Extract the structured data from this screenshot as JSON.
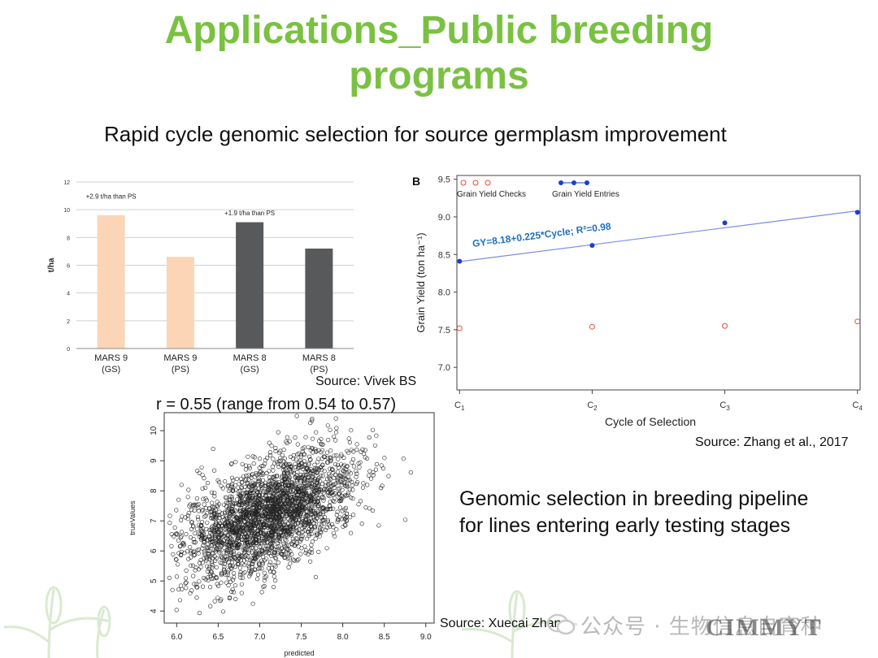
{
  "slide": {
    "title_line1": "Applications_Public breeding",
    "title_line2": "programs",
    "subtitle": "Rapid cycle genomic selection for source germplasm improvement",
    "source_vivek": "Source: Vivek BS",
    "correlation_note": "r = 0.55 (range from 0.54 to 0.57)",
    "source_zhang": "Source: Zhang et al., 2017",
    "pipeline_line1": "Genomic selection in breeding pipeline",
    "pipeline_line2": "for lines entering early testing stages",
    "source_xuecai": "Source: Xuecai Zhang",
    "watermark": "公众号 · 生物信息自育种",
    "logo_text": "CIMMYT"
  },
  "colors": {
    "title_green": "#7ac143",
    "bar_peach": "#fbd5b5",
    "bar_dark": "#58595b",
    "entries_blue": "#1a3fd6",
    "checks_red": "#e74c3c",
    "regression_blue": "#7b8ee0",
    "equation_blue": "#1f6fc0"
  },
  "chart_data": [
    {
      "type": "bar",
      "ylabel": "t/ha",
      "ylim": [
        0,
        12
      ],
      "yticks": [
        0,
        2,
        4,
        6,
        8,
        10,
        12
      ],
      "categories": [
        {
          "line1": "MARS 9",
          "line2": "(GS)"
        },
        {
          "line1": "MARS 9",
          "line2": "(PS)"
        },
        {
          "line1": "MARS 8",
          "line2": "(GS)"
        },
        {
          "line1": "MARS 8",
          "line2": "(PS)"
        }
      ],
      "values": [
        9.6,
        6.6,
        9.1,
        7.2
      ],
      "bar_colors": [
        "#fbd5b5",
        "#fbd5b5",
        "#58595b",
        "#58595b"
      ],
      "annotations": [
        {
          "text": "+2.9 t/ha than PS",
          "category": 0,
          "y": 10.8
        },
        {
          "text": "+1.9 t/ha than PS",
          "category": 2,
          "y": 9.6
        }
      ],
      "grid": true
    },
    {
      "type": "scatter",
      "panel_label": "B",
      "xlabel": "Cycle of Selection",
      "ylabel": "Grain Yield (ton ha⁻¹)",
      "ylim": [
        6.7,
        9.55
      ],
      "yticks": [
        "7.0",
        "7.5",
        "8.0",
        "8.5",
        "9.0",
        "9.5"
      ],
      "x_ticks": [
        {
          "base": "C",
          "sub": "1",
          "x": 1
        },
        {
          "base": "C",
          "sub": "2",
          "x": 2
        },
        {
          "base": "C",
          "sub": "3",
          "x": 3
        },
        {
          "base": "C",
          "sub": "4",
          "x": 4
        }
      ],
      "xlim": [
        0.98,
        4.02
      ],
      "series": [
        {
          "name": "Grain Yield Checks",
          "x": [
            1,
            2,
            3,
            4
          ],
          "y": [
            7.52,
            7.54,
            7.55,
            7.61
          ],
          "marker": "open-circle",
          "color": "#e74c3c"
        },
        {
          "name": "Grain Yield Entries",
          "x": [
            1,
            2,
            3,
            4
          ],
          "y": [
            8.41,
            8.62,
            8.92,
            9.06
          ],
          "marker": "filled-circle",
          "color": "#1a3fd6"
        }
      ],
      "regression": {
        "intercept": 8.18,
        "slope": 0.225,
        "equation": "GY=8.18+0.225*Cycle;  R²=0.98"
      },
      "legend_position": "top-left",
      "grid": false
    },
    {
      "type": "scatter",
      "xlabel": "predicted",
      "ylabel": "trueValues",
      "xlim": [
        5.85,
        9.1
      ],
      "ylim": [
        3.6,
        10.6
      ],
      "xticks": [
        "6.0",
        "6.5",
        "7.0",
        "7.5",
        "8.0",
        "8.5",
        "9.0"
      ],
      "yticks": [
        "4",
        "5",
        "6",
        "7",
        "8",
        "9",
        "10"
      ],
      "correlation": 0.55,
      "marker": "open-circle",
      "cluster_center": [
        7.1,
        7.2
      ],
      "n_points": 2600
    }
  ]
}
